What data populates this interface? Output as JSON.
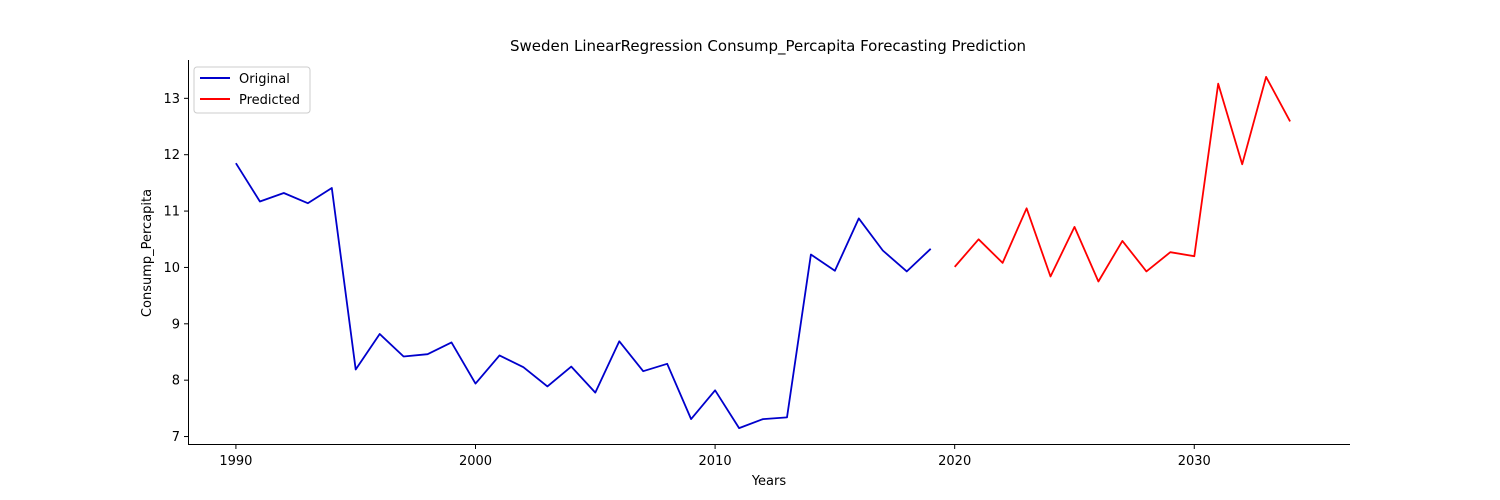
{
  "chart_data": {
    "type": "line",
    "title": "Sweden LinearRegression Consump_Percapita Forecasting Prediction",
    "xlabel": "Years",
    "ylabel": "Consump_Percapita",
    "xlim": [
      1988,
      2036.5
    ],
    "ylim": [
      6.85,
      13.68
    ],
    "xticks": [
      1990,
      2000,
      2010,
      2020,
      2030
    ],
    "yticks": [
      7,
      8,
      9,
      10,
      11,
      12,
      13
    ],
    "grid": false,
    "legend_position": "top-left",
    "series": [
      {
        "name": "Original",
        "color": "#0000cc",
        "x": [
          1990,
          1991,
          1992,
          1993,
          1994,
          1995,
          1996,
          1997,
          1998,
          1999,
          2000,
          2001,
          2002,
          2003,
          2004,
          2005,
          2006,
          2007,
          2008,
          2009,
          2010,
          2011,
          2012,
          2013,
          2014,
          2015,
          2016,
          2017,
          2018,
          2019
        ],
        "y": [
          11.85,
          11.17,
          11.32,
          11.14,
          11.41,
          8.19,
          8.82,
          8.42,
          8.46,
          8.67,
          7.94,
          8.44,
          8.23,
          7.89,
          8.24,
          7.78,
          8.69,
          8.16,
          8.29,
          7.31,
          7.82,
          7.15,
          7.31,
          7.34,
          10.23,
          9.94,
          10.87,
          10.3,
          9.93,
          10.33
        ]
      },
      {
        "name": "Predicted",
        "color": "#ff0000",
        "x": [
          2020,
          2021,
          2022,
          2023,
          2024,
          2025,
          2026,
          2027,
          2028,
          2029,
          2030,
          2031,
          2032,
          2033,
          2034
        ],
        "y": [
          10.01,
          10.5,
          10.08,
          11.05,
          9.84,
          10.72,
          9.75,
          10.47,
          9.93,
          10.27,
          10.2,
          13.26,
          11.83,
          13.38,
          12.59
        ]
      }
    ]
  }
}
